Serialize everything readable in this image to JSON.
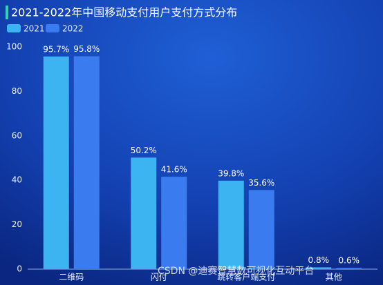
{
  "chart_data": {
    "type": "bar",
    "title": "2021-2022年中国移动支付用户支付方式分布",
    "categories": [
      "二维码",
      "闪付",
      "跳转客户端支付",
      "其他"
    ],
    "series": [
      {
        "name": "2021",
        "color": "#3db4f2",
        "values": [
          95.7,
          50.2,
          39.8,
          0.8
        ],
        "value_labels": [
          "95.7%",
          "50.2%",
          "39.8%",
          "0.8%"
        ]
      },
      {
        "name": "2022",
        "color": "#3a7cf0",
        "values": [
          95.8,
          41.6,
          35.6,
          0.6
        ],
        "value_labels": [
          "95.8%",
          "41.6%",
          "35.6%",
          "0.6%"
        ]
      }
    ],
    "ylim": [
      0,
      100
    ],
    "yticks": [
      0,
      20,
      40,
      60,
      80,
      100
    ],
    "grid": false,
    "legend": "top-left"
  },
  "watermark": "CSDN @迪赛智慧数可视化互动平台"
}
